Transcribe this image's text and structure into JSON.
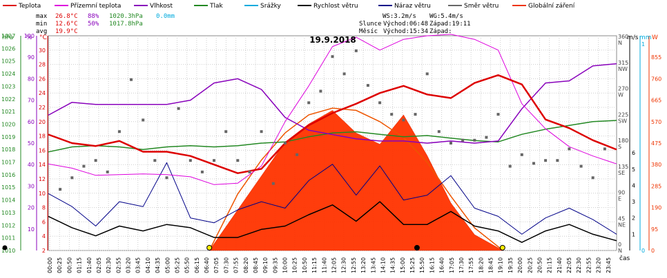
{
  "legend": [
    {
      "label": "Teplota",
      "color": "#dd0000"
    },
    {
      "label": "Přízemní teplota",
      "color": "#dd00dd"
    },
    {
      "label": "Vlhkost",
      "color": "#8800bb"
    },
    {
      "label": "Tlak",
      "color": "#228822"
    },
    {
      "label": "Srážky",
      "color": "#00aadd"
    },
    {
      "label": "Rychlost větru",
      "color": "#000000"
    },
    {
      "label": "Náraz větru",
      "color": "#000088"
    },
    {
      "label": "Směr větru",
      "color": "#666666"
    },
    {
      "label": "Globální záření",
      "color": "#ee3300"
    }
  ],
  "stats": {
    "max": {
      "label": "max",
      "temp": "26.8°C",
      "hum": "88%",
      "press": "1020.3hPa",
      "rain": "0.0mm"
    },
    "min": {
      "label": "min",
      "temp": "12.6°C",
      "hum": "50%",
      "press": "1017.8hPa"
    },
    "avg": {
      "label": "avg",
      "temp": "19.9°C"
    }
  },
  "info": {
    "ws": "WS:3.2m/s",
    "wg": "WG:5.4m/s",
    "slunce": "Slunce",
    "slunce_vychod": "Východ:06:48",
    "slunce_zapad": "Západ:19:11",
    "mesic": "Měsíc",
    "mesic_vychod": "Východ:15:34",
    "mesic_zapad": "Západ:"
  },
  "axis_units": {
    "hpa": "hPa",
    "pct": "%",
    "degc": "°C",
    "ms": "m/s",
    "mm": "mm",
    "w": "W",
    "cas": "čas"
  },
  "chart_data": {
    "type": "line",
    "title": "19.9.2018",
    "x_ticks": [
      "00:00",
      "00:25",
      "00:50",
      "01:15",
      "01:40",
      "02:05",
      "02:30",
      "02:55",
      "03:20",
      "03:45",
      "04:10",
      "04:35",
      "05:00",
      "05:25",
      "05:50",
      "06:15",
      "06:40",
      "07:05",
      "07:30",
      "07:55",
      "08:20",
      "08:45",
      "09:10",
      "09:35",
      "10:00",
      "10:25",
      "10:50",
      "11:15",
      "11:40",
      "12:05",
      "12:30",
      "12:55",
      "13:20",
      "13:45",
      "14:10",
      "14:35",
      "15:00",
      "15:25",
      "15:50",
      "16:15",
      "16:40",
      "17:05",
      "17:30",
      "17:55",
      "18:20",
      "18:45",
      "19:10",
      "19:35",
      "20:00",
      "20:25",
      "20:50",
      "21:15",
      "21:40",
      "22:05",
      "22:30",
      "22:55",
      "23:20",
      "23:45"
    ],
    "axes": {
      "pressure_hpa": {
        "min": 1010,
        "max": 1027,
        "ticks": [
          1010,
          1011,
          1012,
          1013,
          1014,
          1015,
          1016,
          1017,
          1018,
          1019,
          1020,
          1021,
          1022,
          1023,
          1024,
          1025,
          1026,
          1027
        ]
      },
      "humidity_pct": {
        "min": 0,
        "max": 100,
        "ticks": [
          10,
          20,
          30,
          40,
          50,
          60,
          70,
          80,
          90,
          100
        ]
      },
      "temperature_c": {
        "min": 2,
        "max": 32,
        "ticks": [
          2,
          4,
          6,
          8,
          10,
          12,
          14,
          16,
          18,
          20,
          22,
          24,
          26,
          28,
          30
        ]
      },
      "wind_dir": {
        "ticks": [
          {
            "deg": "0",
            "dir": "N"
          },
          {
            "deg": "45",
            "dir": "NE"
          },
          {
            "deg": "90",
            "dir": "E"
          },
          {
            "deg": "135",
            "dir": "SE"
          },
          {
            "deg": "180",
            "dir": "S"
          },
          {
            "deg": "225",
            "dir": "SW"
          },
          {
            "deg": "270",
            "dir": "W"
          },
          {
            "deg": "315",
            "dir": "NW"
          },
          {
            "deg": "360",
            "dir": "N"
          }
        ]
      },
      "wind_ms": {
        "ticks": [
          1,
          2,
          3,
          4,
          5,
          6
        ]
      },
      "rain_mm": {
        "ticks": [
          0,
          1
        ]
      },
      "radiation_w": {
        "ticks": [
          0,
          95,
          190,
          285,
          380,
          475,
          570,
          665,
          760,
          855
        ]
      }
    },
    "series": [
      {
        "name": "Teplota",
        "unit": "°C",
        "x": [
          0,
          1,
          2,
          3,
          4,
          5,
          6,
          7,
          8,
          9,
          10,
          11,
          12,
          13,
          14,
          15,
          16,
          17,
          18,
          19,
          20,
          21,
          22,
          23,
          24
        ],
        "values": [
          18.2,
          17.0,
          16.6,
          17.3,
          15.8,
          15.8,
          15.2,
          14.0,
          12.8,
          13.4,
          17.0,
          19.5,
          21.2,
          22.5,
          24.0,
          25.0,
          23.8,
          23.3,
          25.4,
          26.5,
          25.2,
          20.3,
          19.1,
          17.4,
          16.1
        ]
      },
      {
        "name": "Přízemní teplota",
        "unit": "°C",
        "x": [
          0,
          1,
          2,
          3,
          4,
          5,
          6,
          7,
          8,
          9,
          10,
          11,
          12,
          13,
          14,
          15,
          16,
          17,
          18,
          19,
          20,
          21,
          22,
          23,
          24
        ],
        "values": [
          14.1,
          13.5,
          12.5,
          12.6,
          12.7,
          12.6,
          12.3,
          11.2,
          11.4,
          13.8,
          20.0,
          25.0,
          30.5,
          31.8,
          30.0,
          31.5,
          32.0,
          32.2,
          31.5,
          30.0,
          22.5,
          19.0,
          16.5,
          15.2,
          14.1
        ]
      },
      {
        "name": "Vlhkost",
        "unit": "%",
        "x": [
          0,
          1,
          2,
          3,
          4,
          5,
          6,
          7,
          8,
          9,
          10,
          11,
          12,
          13,
          14,
          15,
          16,
          17,
          18,
          19,
          20,
          21,
          22,
          23,
          24
        ],
        "values": [
          63,
          69,
          68,
          68,
          68,
          68,
          70,
          78,
          80,
          75,
          62,
          56,
          54,
          52,
          51,
          51,
          50,
          51,
          50,
          51,
          66,
          78,
          79,
          86,
          87
        ]
      },
      {
        "name": "Tlak",
        "unit": "hPa",
        "x": [
          0,
          1,
          2,
          3,
          4,
          5,
          6,
          7,
          8,
          9,
          10,
          11,
          12,
          13,
          14,
          15,
          16,
          17,
          18,
          19,
          20,
          21,
          22,
          23,
          24
        ],
        "values": [
          1017.8,
          1018.2,
          1018.3,
          1018.2,
          1018.0,
          1018.2,
          1018.3,
          1018.2,
          1018.3,
          1018.5,
          1018.6,
          1019.0,
          1019.3,
          1019.4,
          1019.2,
          1019.0,
          1019.1,
          1018.9,
          1018.7,
          1018.6,
          1019.2,
          1019.6,
          1019.9,
          1020.2,
          1020.3
        ]
      },
      {
        "name": "Rychlost větru",
        "unit": "m/s",
        "x": [
          0,
          1,
          2,
          3,
          4,
          5,
          6,
          7,
          8,
          9,
          10,
          11,
          12,
          13,
          14,
          15,
          16,
          17,
          18,
          19,
          20,
          21,
          22,
          23,
          24
        ],
        "values": [
          2.1,
          1.4,
          0.9,
          1.5,
          1.2,
          1.6,
          1.4,
          0.8,
          0.8,
          1.3,
          1.5,
          2.2,
          2.8,
          1.8,
          3.0,
          1.6,
          1.6,
          2.4,
          1.5,
          1.2,
          0.5,
          1.2,
          1.6,
          1.0,
          0.6
        ]
      },
      {
        "name": "Náraz větru",
        "unit": "m/s",
        "x": [
          0,
          1,
          2,
          3,
          4,
          5,
          6,
          7,
          8,
          9,
          10,
          11,
          12,
          13,
          14,
          15,
          16,
          17,
          18,
          19,
          20,
          21,
          22,
          23,
          24
        ],
        "values": [
          3.5,
          2.7,
          1.5,
          3.0,
          2.7,
          5.4,
          2.0,
          1.7,
          2.5,
          3.0,
          2.6,
          4.3,
          5.3,
          3.4,
          5.2,
          3.1,
          3.4,
          4.6,
          2.6,
          2.1,
          1.0,
          2.0,
          2.6,
          1.9,
          1.0
        ]
      },
      {
        "name": "Globální záření",
        "unit": "W",
        "x": [
          6.8,
          8,
          9,
          10,
          11,
          12,
          13,
          14,
          15,
          16,
          17,
          18,
          19.2
        ],
        "values": [
          0,
          180,
          330,
          480,
          560,
          620,
          520,
          470,
          600,
          420,
          210,
          70,
          0
        ]
      }
    ],
    "wind_direction_deg": {
      "x": [
        0.5,
        1,
        1.5,
        2,
        2.5,
        3,
        3.5,
        4,
        4.5,
        5,
        5.5,
        6,
        6.5,
        7,
        7.5,
        8,
        8.5,
        9,
        9.5,
        10,
        10.5,
        11,
        11.5,
        12,
        12.5,
        13,
        13.5,
        14,
        14.5,
        15,
        15.5,
        16,
        16.5,
        17,
        17.5,
        18,
        18.5,
        19,
        19.5,
        20,
        20.5,
        21,
        21.5,
        22,
        22.5,
        23,
        23.5
      ],
      "values": [
        100,
        120,
        140,
        150,
        130,
        200,
        290,
        220,
        150,
        120,
        240,
        150,
        130,
        150,
        200,
        150,
        130,
        200,
        110,
        180,
        160,
        250,
        270,
        330,
        300,
        340,
        280,
        250,
        230,
        220,
        230,
        300,
        200,
        180,
        185,
        185,
        190,
        230,
        140,
        160,
        145,
        150,
        150,
        170,
        140,
        120,
        170
      ]
    },
    "clear_sky_radiation": {
      "x": [
        6.8,
        8,
        9,
        10,
        11,
        12,
        13,
        14,
        15,
        16,
        17,
        18,
        19.2
      ],
      "values": [
        0,
        250,
        400,
        520,
        600,
        630,
        620,
        570,
        500,
        390,
        240,
        100,
        0
      ]
    }
  }
}
